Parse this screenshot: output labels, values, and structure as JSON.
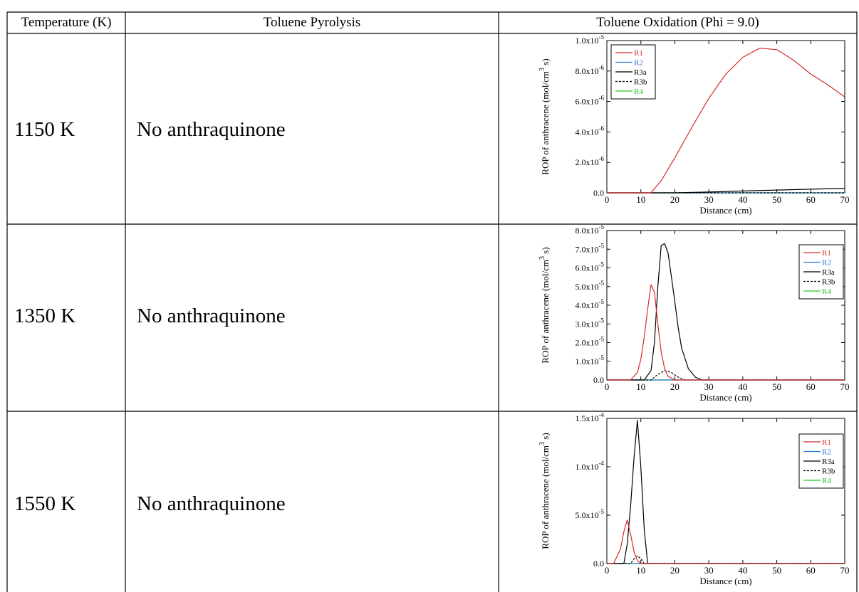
{
  "table": {
    "headers": [
      "Temperature (K)",
      "Toluene Pyrolysis",
      "Toluene Oxidation (Phi = 9.0)"
    ],
    "rows": [
      {
        "temperature": "1150 K",
        "pyrolysis": "No anthraquinone"
      },
      {
        "temperature": "1350 K",
        "pyrolysis": "No anthraquinone"
      },
      {
        "temperature": "1550 K",
        "pyrolysis": "No anthraquinone"
      }
    ]
  },
  "colors": {
    "R1": "#d42a2a",
    "R2": "#2a73d4",
    "R3a": "#000000",
    "R3b": "#000000",
    "R4": "#22cc22",
    "grid_line": "#000000"
  },
  "chart_data": [
    {
      "type": "line",
      "xlabel": "Distance (cm)",
      "ylabel": "ROP of anthracene (mol/cm3 s)",
      "xlim": [
        0,
        70
      ],
      "ylim": [
        0,
        1e-05
      ],
      "xticks": [
        0,
        10,
        20,
        30,
        40,
        50,
        60,
        70
      ],
      "yticks": [
        0,
        2e-06,
        4e-06,
        6e-06,
        8e-06,
        1e-05
      ],
      "ytick_labels": [
        "0.0",
        "2.0x10-6",
        "4.0x10-6",
        "6.0x10-6",
        "8.0x10-6",
        "1.0x10-5"
      ],
      "legend_position": "top-left",
      "series": [
        {
          "name": "R1",
          "style": "solid",
          "x": [
            0,
            10,
            13,
            16,
            20,
            25,
            30,
            35,
            40,
            45,
            50,
            55,
            60,
            65,
            70
          ],
          "y": [
            0,
            0,
            0,
            8e-07,
            2.3e-06,
            4.3e-06,
            6.2e-06,
            7.8e-06,
            8.9e-06,
            9.5e-06,
            9.4e-06,
            8.7e-06,
            7.8e-06,
            7.1e-06,
            6.3e-06
          ]
        },
        {
          "name": "R2",
          "style": "solid",
          "x": [
            0,
            70
          ],
          "y": [
            0,
            0
          ]
        },
        {
          "name": "R3a",
          "style": "solid",
          "x": [
            0,
            20,
            30,
            40,
            50,
            60,
            70
          ],
          "y": [
            0,
            0,
            5e-08,
            1.2e-07,
            1.8e-07,
            2.4e-07,
            3e-07
          ]
        },
        {
          "name": "R3b",
          "style": "dashed",
          "x": [
            0,
            70
          ],
          "y": [
            0,
            0
          ]
        },
        {
          "name": "R4",
          "style": "solid",
          "x": [
            0,
            70
          ],
          "y": [
            0,
            0
          ]
        }
      ]
    },
    {
      "type": "line",
      "xlabel": "Distance (cm)",
      "ylabel": "ROP of anthracene (mol/cm3 s)",
      "xlim": [
        0,
        70
      ],
      "ylim": [
        0,
        8e-05
      ],
      "xticks": [
        0,
        10,
        20,
        30,
        40,
        50,
        60,
        70
      ],
      "yticks": [
        0,
        1e-05,
        2e-05,
        3e-05,
        4e-05,
        5e-05,
        6e-05,
        7e-05,
        8e-05
      ],
      "ytick_labels": [
        "0.0",
        "1.0x10-5",
        "2.0x10-5",
        "3.0x10-5",
        "4.0x10-5",
        "5.0x10-5",
        "6.0x10-5",
        "7.0x10-5",
        "8.0x10-5"
      ],
      "legend_position": "top-right",
      "series": [
        {
          "name": "R1",
          "style": "solid",
          "x": [
            0,
            7,
            9,
            10,
            11,
            12,
            13,
            14,
            15,
            16,
            17,
            18,
            20,
            70
          ],
          "y": [
            0,
            0,
            4e-06,
            1.1e-05,
            2.3e-05,
            3.8e-05,
            5.1e-05,
            4.7e-05,
            3e-05,
            1.5e-05,
            6e-06,
            2e-06,
            0,
            0
          ]
        },
        {
          "name": "R2",
          "style": "solid",
          "x": [
            0,
            70
          ],
          "y": [
            0,
            0
          ]
        },
        {
          "name": "R3a",
          "style": "solid",
          "x": [
            0,
            11,
            13,
            14,
            15,
            16,
            17,
            18,
            19,
            20,
            21,
            22,
            24,
            26,
            28,
            70
          ],
          "y": [
            0,
            0,
            5e-06,
            2e-05,
            5e-05,
            7.2e-05,
            7.3e-05,
            6.8e-05,
            5.5e-05,
            4.2e-05,
            2.8e-05,
            1.7e-05,
            6e-06,
            1.5e-06,
            0,
            0
          ]
        },
        {
          "name": "R3b",
          "style": "dashed",
          "x": [
            0,
            13,
            15,
            17,
            19,
            21,
            23,
            70
          ],
          "y": [
            0,
            0,
            3e-06,
            5e-06,
            4e-06,
            1.5e-06,
            0,
            0
          ]
        },
        {
          "name": "R4",
          "style": "solid",
          "x": [
            0,
            70
          ],
          "y": [
            0,
            0
          ]
        }
      ]
    },
    {
      "type": "line",
      "xlabel": "Distance (cm)",
      "ylabel": "ROP of anthracene (mol/cm3 s)",
      "xlim": [
        0,
        70
      ],
      "ylim": [
        0,
        0.00015
      ],
      "xticks": [
        0,
        10,
        20,
        30,
        40,
        50,
        60,
        70
      ],
      "yticks": [
        0,
        5e-05,
        0.0001,
        0.00015
      ],
      "ytick_labels": [
        "0.0",
        "5.0x10-5",
        "1.0x10-4",
        "1.5x10-4"
      ],
      "legend_position": "top-right",
      "series": [
        {
          "name": "R1",
          "style": "solid",
          "x": [
            0,
            2,
            4,
            5,
            6,
            7,
            8,
            9,
            10,
            70
          ],
          "y": [
            0,
            0,
            1.5e-05,
            3.3e-05,
            4.5e-05,
            3e-05,
            1.2e-05,
            3e-06,
            0,
            0
          ]
        },
        {
          "name": "R2",
          "style": "solid",
          "x": [
            0,
            70
          ],
          "y": [
            0,
            0
          ]
        },
        {
          "name": "R3a",
          "style": "solid",
          "x": [
            0,
            5,
            6,
            7,
            8,
            9,
            10,
            11,
            12,
            70
          ],
          "y": [
            0,
            0,
            2e-05,
            6e-05,
            0.00011,
            0.000148,
            0.0001,
            3.5e-05,
            0,
            0
          ]
        },
        {
          "name": "R3b",
          "style": "dashed",
          "x": [
            0,
            7,
            8,
            9,
            10,
            11,
            70
          ],
          "y": [
            0,
            0,
            5e-06,
            8e-06,
            5e-06,
            0,
            0
          ]
        },
        {
          "name": "R4",
          "style": "solid",
          "x": [
            0,
            70
          ],
          "y": [
            0,
            0
          ]
        }
      ]
    }
  ]
}
